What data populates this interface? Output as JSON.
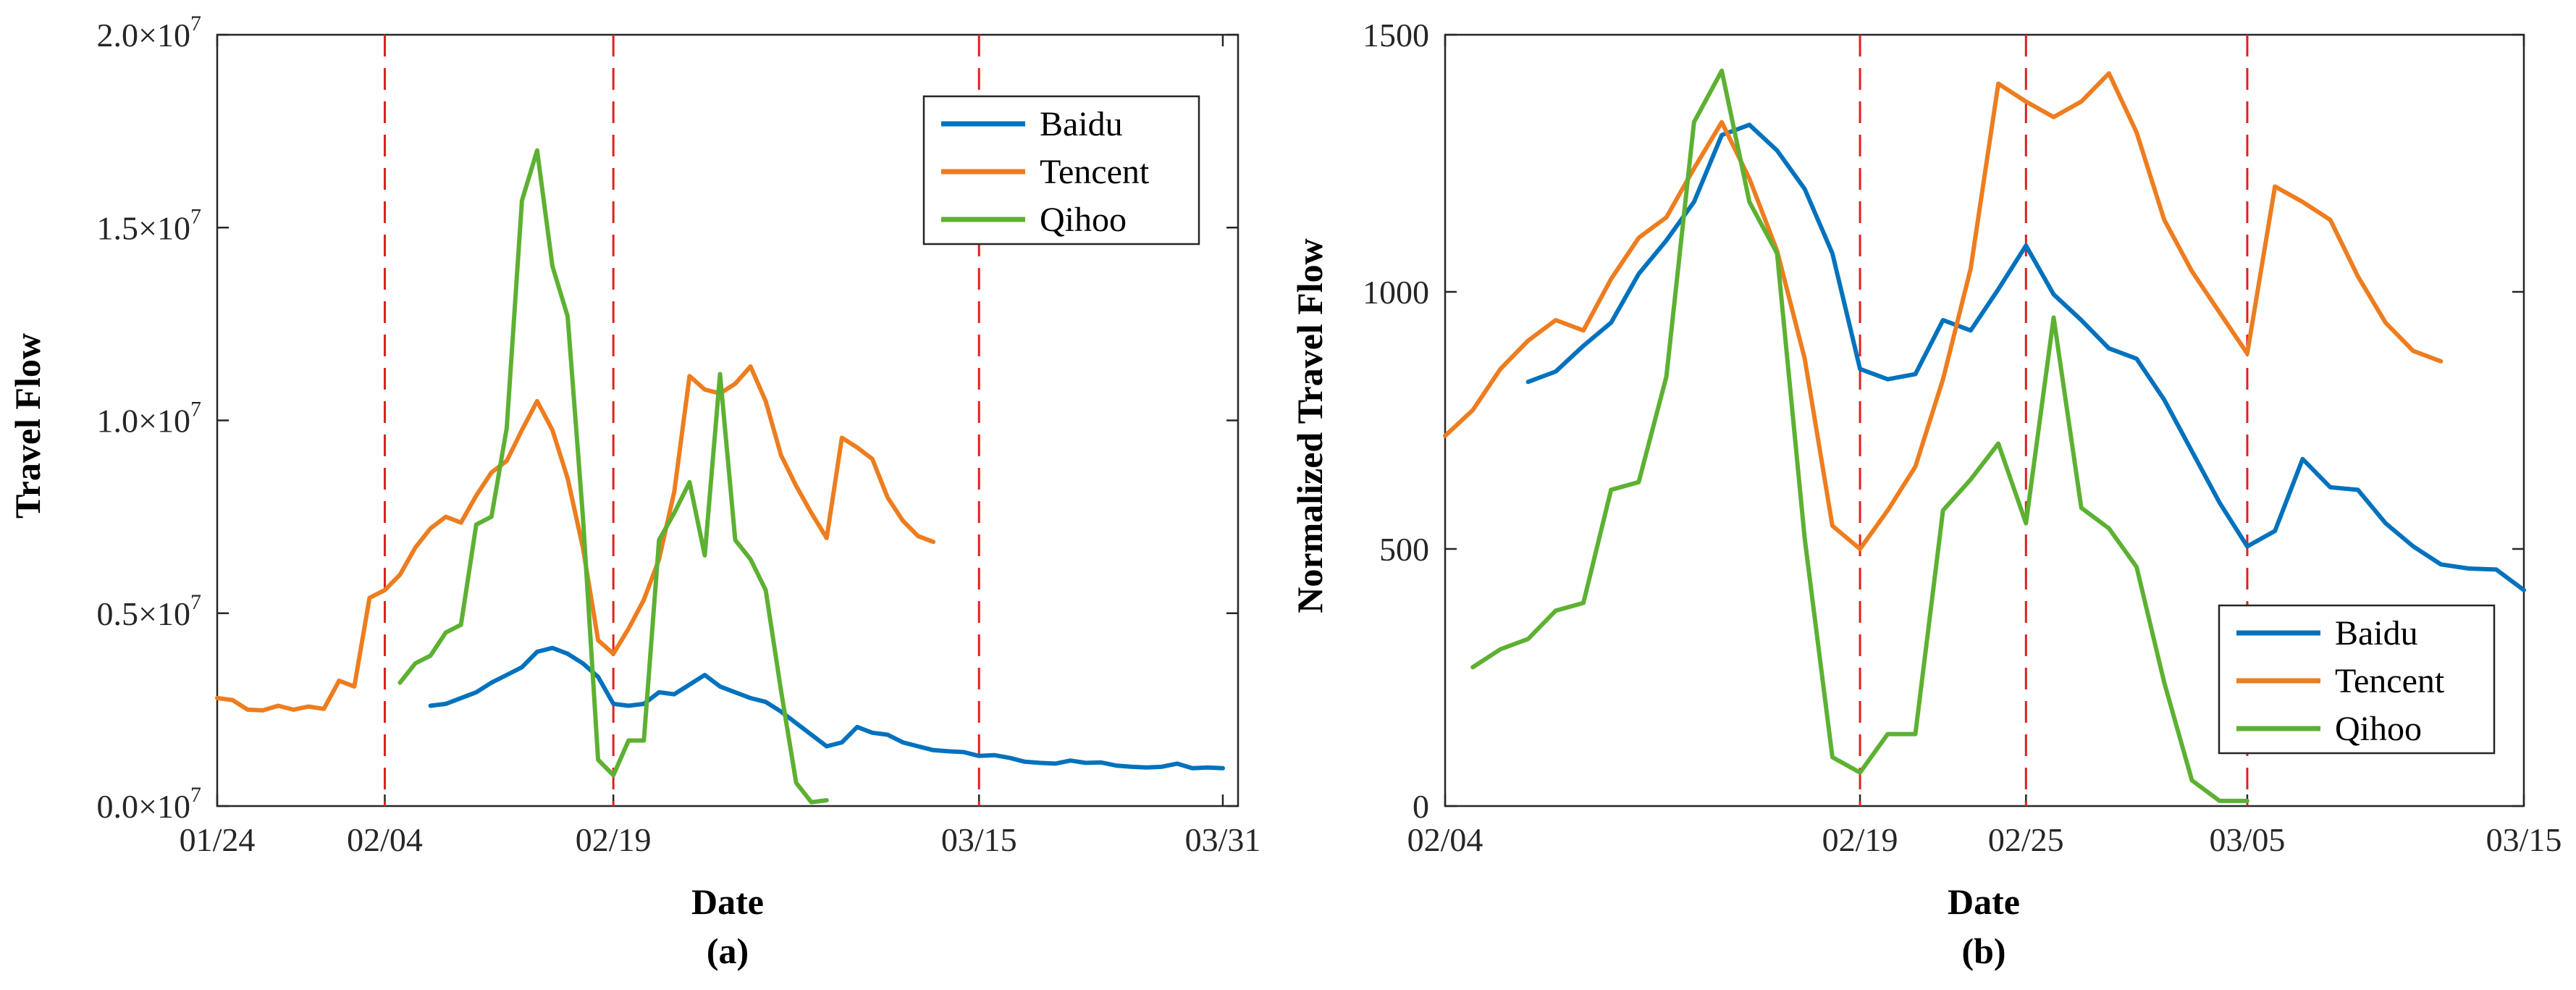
{
  "colors": {
    "baidu": "#0072BD",
    "tencent": "#ED7D1F",
    "qihoo": "#5DB132",
    "vline": "#E02020"
  },
  "chart_data": [
    {
      "panel_label": "(a)",
      "type": "line",
      "xlabel": "Date",
      "ylabel": "Travel Flow",
      "xlim": [
        0,
        67
      ],
      "ylim": [
        0,
        20000000
      ],
      "xticks": [
        {
          "value": 0,
          "label": "01/24"
        },
        {
          "value": 11,
          "label": "02/04"
        },
        {
          "value": 26,
          "label": "02/19"
        },
        {
          "value": 50,
          "label": "03/15"
        },
        {
          "value": 66,
          "label": "03/31"
        }
      ],
      "yticks": [
        {
          "value": 0,
          "label": "0.0×10",
          "sup": "7"
        },
        {
          "value": 5000000,
          "label": "0.5×10",
          "sup": "7"
        },
        {
          "value": 10000000,
          "label": "1.0×10",
          "sup": "7"
        },
        {
          "value": 15000000,
          "label": "1.5×10",
          "sup": "7"
        },
        {
          "value": 20000000,
          "label": "2.0×10",
          "sup": "7"
        }
      ],
      "vlines": [
        11,
        26,
        50
      ],
      "legend_position": "top-right",
      "series": [
        {
          "name": "Baidu",
          "color_key": "baidu",
          "x_start": 14,
          "values": [
            2600000,
            2650000,
            2800000,
            2950000,
            3200000,
            3400000,
            3600000,
            4000000,
            4100000,
            3950000,
            3700000,
            3350000,
            2650000,
            2600000,
            2650000,
            2950000,
            2900000,
            3150000,
            3400000,
            3100000,
            2950000,
            2800000,
            2700000,
            2450000,
            2150000,
            1850000,
            1550000,
            1650000,
            2050000,
            1900000,
            1850000,
            1650000,
            1550000,
            1450000,
            1420000,
            1400000,
            1300000,
            1320000,
            1250000,
            1150000,
            1120000,
            1100000,
            1180000,
            1120000,
            1130000,
            1050000,
            1020000,
            1000000,
            1020000,
            1100000,
            980000,
            1000000,
            980000
          ]
        },
        {
          "name": "Tencent",
          "color_key": "tencent",
          "x_start": 0,
          "values": [
            2800000,
            2750000,
            2500000,
            2480000,
            2600000,
            2500000,
            2580000,
            2520000,
            3250000,
            3100000,
            5400000,
            5600000,
            6000000,
            6700000,
            7200000,
            7500000,
            7350000,
            8050000,
            8650000,
            8950000,
            9750000,
            10500000,
            9750000,
            8500000,
            6700000,
            4300000,
            3950000,
            4600000,
            5350000,
            6400000,
            8150000,
            11150000,
            10800000,
            10700000,
            10950000,
            11400000,
            10500000,
            9100000,
            8300000,
            7600000,
            6950000,
            9550000,
            9300000,
            9000000,
            8000000,
            7400000,
            7000000,
            6850000
          ]
        },
        {
          "name": "Qihoo",
          "color_key": "qihoo",
          "x_start": 12,
          "values": [
            3200000,
            3700000,
            3900000,
            4500000,
            4700000,
            7300000,
            7500000,
            9800000,
            15700000,
            17000000,
            14000000,
            12700000,
            7500000,
            1200000,
            800000,
            1700000,
            1700000,
            6900000,
            7600000,
            8400000,
            6500000,
            11200000,
            6900000,
            6400000,
            5600000,
            3000000,
            600000,
            100000,
            150000
          ]
        }
      ]
    },
    {
      "panel_label": "(b)",
      "type": "line",
      "xlabel": "Date",
      "ylabel": "Normalized Travel Flow",
      "xlim": [
        0,
        39
      ],
      "ylim": [
        0,
        1500
      ],
      "xticks": [
        {
          "value": 0,
          "label": "02/04"
        },
        {
          "value": 15,
          "label": "02/19"
        },
        {
          "value": 21,
          "label": "02/25"
        },
        {
          "value": 29,
          "label": "03/05"
        },
        {
          "value": 39,
          "label": "03/15"
        }
      ],
      "yticks": [
        {
          "value": 0,
          "label": "0"
        },
        {
          "value": 500,
          "label": "500"
        },
        {
          "value": 1000,
          "label": "1000"
        },
        {
          "value": 1500,
          "label": "1500"
        }
      ],
      "vlines": [
        15,
        21,
        29
      ],
      "legend_position": "bottom-right",
      "series": [
        {
          "name": "Baidu",
          "color_key": "baidu",
          "x_start": 3,
          "values": [
            825,
            845,
            895,
            940,
            1035,
            1100,
            1175,
            1305,
            1325,
            1275,
            1200,
            1075,
            850,
            830,
            840,
            945,
            925,
            1005,
            1090,
            995,
            945,
            890,
            870,
            790,
            690,
            590,
            505,
            535,
            675,
            620,
            615,
            550,
            505,
            470,
            462,
            460,
            420
          ]
        },
        {
          "name": "Tencent",
          "color_key": "tencent",
          "x_start": 0,
          "values": [
            720,
            770,
            850,
            905,
            945,
            925,
            1025,
            1105,
            1145,
            1240,
            1330,
            1220,
            1080,
            870,
            545,
            500,
            575,
            660,
            830,
            1045,
            1405,
            1370,
            1340,
            1370,
            1425,
            1310,
            1140,
            1040,
            960,
            880,
            1205,
            1175,
            1140,
            1030,
            940,
            885,
            865
          ]
        },
        {
          "name": "Qihoo",
          "color_key": "qihoo",
          "x_start": 1,
          "values": [
            270,
            305,
            325,
            380,
            395,
            615,
            630,
            835,
            1330,
            1430,
            1175,
            1075,
            520,
            95,
            65,
            140,
            140,
            575,
            635,
            705,
            550,
            950,
            580,
            540,
            465,
            240,
            50,
            10,
            10
          ]
        }
      ]
    }
  ]
}
